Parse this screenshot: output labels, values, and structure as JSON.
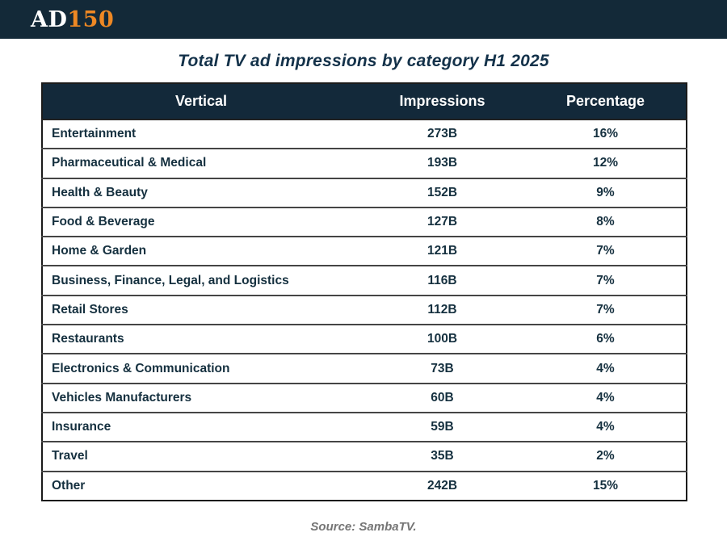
{
  "logo": {
    "part_ad": "AD",
    "part_150": "150"
  },
  "title": "Total TV ad impressions by category H1 2025",
  "table": {
    "headers": {
      "vertical": "Vertical",
      "impressions": "Impressions",
      "percentage": "Percentage"
    },
    "rows": [
      {
        "vertical": "Entertainment",
        "impressions": "273B",
        "percentage": "16%"
      },
      {
        "vertical": "Pharmaceutical & Medical",
        "impressions": "193B",
        "percentage": "12%"
      },
      {
        "vertical": "Health & Beauty",
        "impressions": "152B",
        "percentage": "9%"
      },
      {
        "vertical": "Food & Beverage",
        "impressions": "127B",
        "percentage": "8%"
      },
      {
        "vertical": "Home & Garden",
        "impressions": "121B",
        "percentage": "7%"
      },
      {
        "vertical": "Business, Finance, Legal, and Logistics",
        "impressions": "116B",
        "percentage": "7%"
      },
      {
        "vertical": "Retail Stores",
        "impressions": "112B",
        "percentage": "7%"
      },
      {
        "vertical": "Restaurants",
        "impressions": "100B",
        "percentage": "6%"
      },
      {
        "vertical": "Electronics & Communication",
        "impressions": "73B",
        "percentage": "4%"
      },
      {
        "vertical": "Vehicles Manufacturers",
        "impressions": "60B",
        "percentage": "4%"
      },
      {
        "vertical": "Insurance",
        "impressions": "59B",
        "percentage": "4%"
      },
      {
        "vertical": "Travel",
        "impressions": "35B",
        "percentage": "2%"
      },
      {
        "vertical": "Other",
        "impressions": "242B",
        "percentage": "15%"
      }
    ]
  },
  "footer": {
    "source": "Source: SambaTV."
  },
  "colors": {
    "topbar_bg": "#132938",
    "header_row_bg": "#13293a",
    "logo_accent_orange": "#ee8824",
    "body_text": "#15303f",
    "title_text": "#14324a",
    "source_text": "#757575"
  },
  "chart_data": {
    "type": "table",
    "title": "Total TV ad impressions by category H1 2025",
    "columns": [
      "Vertical",
      "Impressions",
      "Percentage"
    ],
    "rows": [
      [
        "Entertainment",
        "273B",
        "16%"
      ],
      [
        "Pharmaceutical & Medical",
        "193B",
        "12%"
      ],
      [
        "Health & Beauty",
        "152B",
        "9%"
      ],
      [
        "Food & Beverage",
        "127B",
        "8%"
      ],
      [
        "Home & Garden",
        "121B",
        "7%"
      ],
      [
        "Business, Finance, Legal, and Logistics",
        "116B",
        "7%"
      ],
      [
        "Retail Stores",
        "112B",
        "7%"
      ],
      [
        "Restaurants",
        "100B",
        "6%"
      ],
      [
        "Electronics & Communication",
        "73B",
        "4%"
      ],
      [
        "Vehicles Manufacturers",
        "60B",
        "4%"
      ],
      [
        "Insurance",
        "59B",
        "4%"
      ],
      [
        "Travel",
        "35B",
        "2%"
      ],
      [
        "Other",
        "242B",
        "15%"
      ]
    ],
    "impressions_billions": [
      273,
      193,
      152,
      127,
      121,
      116,
      112,
      100,
      73,
      60,
      59,
      35,
      242
    ],
    "percentages": [
      16,
      12,
      9,
      8,
      7,
      7,
      7,
      6,
      4,
      4,
      4,
      2,
      15
    ],
    "source": "Source: SambaTV."
  }
}
